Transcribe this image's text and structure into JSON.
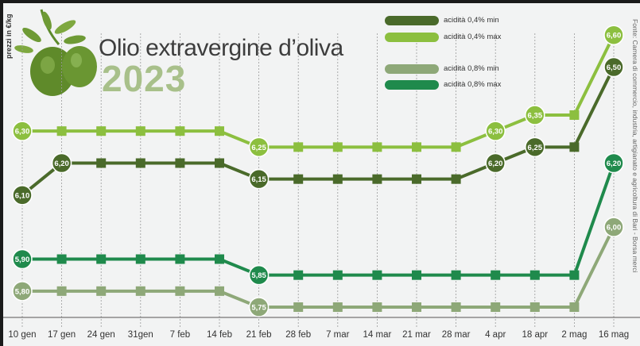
{
  "header": {
    "title": "Olio extravergine d’oliva",
    "year": "2023",
    "ylabel": "prezzi in €/kg",
    "source": "Fonte: Camera di commercio, industria, artigianato e agricoltura di Bari - Borsa merci"
  },
  "colors": {
    "dark_olive": "#4a6a2a",
    "light_green": "#8cbf3f",
    "grey_green": "#8ea878",
    "emerald": "#1f8a4c",
    "olive_leaf": "#5d8a2c"
  },
  "chart_data": {
    "type": "line",
    "categories": [
      "10 gen",
      "17 gen",
      "24 gen",
      "31gen",
      "7 feb",
      "14 feb",
      "21 feb",
      "28 feb",
      "7 mar",
      "14 mar",
      "21 mar",
      "28 mar",
      "4 apr",
      "18 apr",
      "2 mag",
      "16 mag"
    ],
    "ylim": [
      5.7,
      6.65
    ],
    "grid": "vertical",
    "legend": "top-right",
    "series": [
      {
        "name": "acidità 0,4% min",
        "color": "#4a6a2a",
        "values": [
          6.1,
          6.2,
          6.2,
          6.2,
          6.2,
          6.2,
          6.15,
          6.15,
          6.15,
          6.15,
          6.15,
          6.15,
          6.2,
          6.25,
          6.25,
          6.5
        ],
        "labels": [
          [
            "0",
            "6,10"
          ],
          [
            "1",
            "6,20"
          ],
          [
            "6",
            "6,15"
          ],
          [
            "12",
            "6,20"
          ],
          [
            "13",
            "6,25"
          ],
          [
            "15",
            "6,50"
          ]
        ]
      },
      {
        "name": "acidità 0,4% max",
        "color": "#8cbf3f",
        "values": [
          6.3,
          6.3,
          6.3,
          6.3,
          6.3,
          6.3,
          6.25,
          6.25,
          6.25,
          6.25,
          6.25,
          6.25,
          6.3,
          6.35,
          6.35,
          6.6
        ],
        "labels": [
          [
            "0",
            "6,30"
          ],
          [
            "6",
            "6,25"
          ],
          [
            "12",
            "6,30"
          ],
          [
            "13",
            "6,35"
          ],
          [
            "15",
            "6,60"
          ]
        ]
      },
      {
        "name": "acidità 0,8% min",
        "color": "#8ea878",
        "values": [
          5.8,
          5.8,
          5.8,
          5.8,
          5.8,
          5.8,
          5.75,
          5.75,
          5.75,
          5.75,
          5.75,
          5.75,
          5.75,
          5.75,
          5.75,
          6.0
        ],
        "labels": [
          [
            "0",
            "5,80"
          ],
          [
            "6",
            "5,75"
          ],
          [
            "15",
            "6,00"
          ]
        ]
      },
      {
        "name": "acidità 0,8% max",
        "color": "#1f8a4c",
        "values": [
          5.9,
          5.9,
          5.9,
          5.9,
          5.9,
          5.9,
          5.85,
          5.85,
          5.85,
          5.85,
          5.85,
          5.85,
          5.85,
          5.85,
          5.85,
          6.2
        ],
        "labels": [
          [
            "0",
            "5,90"
          ],
          [
            "6",
            "5,85"
          ],
          [
            "15",
            "6,20"
          ]
        ]
      }
    ]
  }
}
